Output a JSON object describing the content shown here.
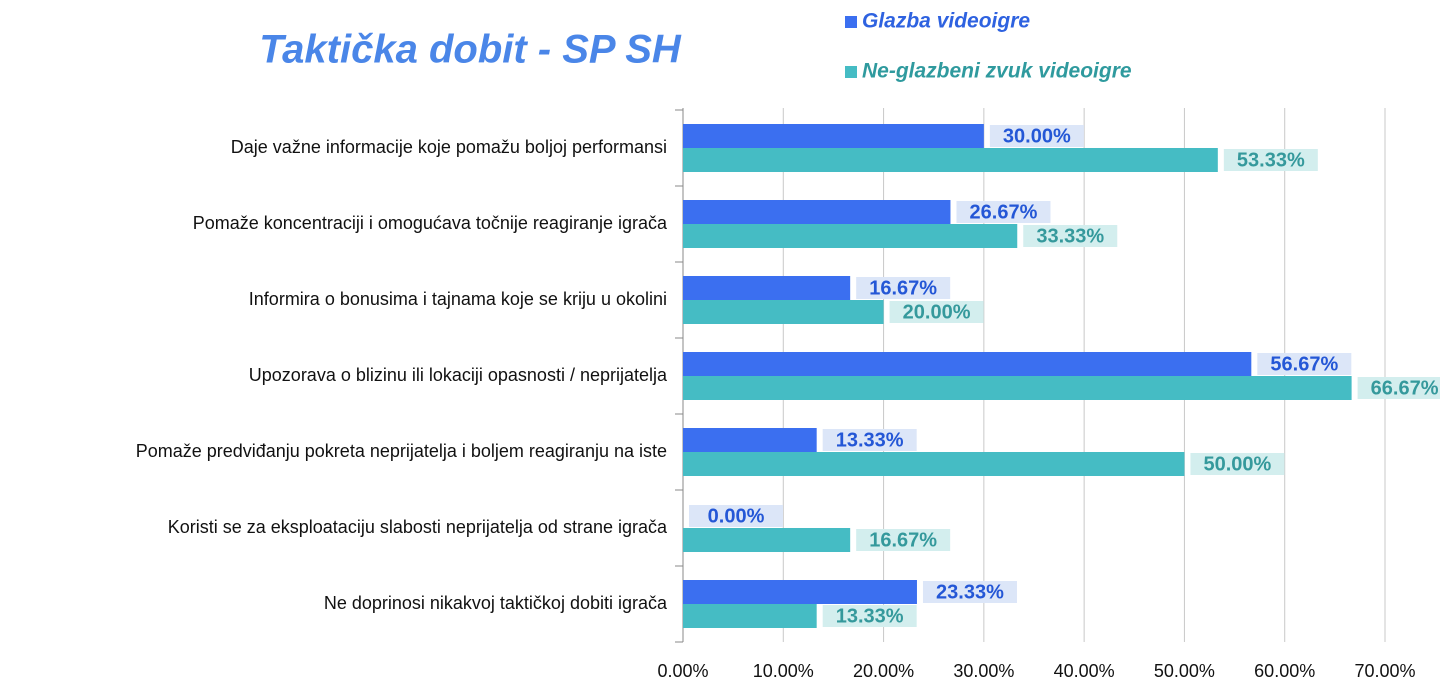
{
  "chart_data": {
    "type": "hbar",
    "title": "Taktička dobit - SP SH",
    "categories": [
      "Daje važne informacije koje pomažu boljoj performansi",
      "Pomaže koncentraciji i omogućava točnije reagiranje igrača",
      "Informira o bonusima i tajnama koje se kriju u okolini",
      "Upozorava o blizinu ili lokaciji opasnosti / neprijatelja",
      "Pomaže predviđanju pokreta neprijatelja i boljem reagiranju na iste",
      "Koristi se za eksploataciju slabosti neprijatelja od strane igrača",
      "Ne doprinosi nikakvoj taktičkoj dobiti igrača"
    ],
    "series": [
      {
        "name": "Glazba videoigre",
        "color": "#3b6ff0",
        "values": [
          30,
          26.67,
          16.67,
          56.67,
          13.33,
          0,
          23.33
        ],
        "value_labels": [
          "30.00%",
          "26.67%",
          "16.67%",
          "56.67%",
          "13.33%",
          "0.00%",
          "23.33%"
        ]
      },
      {
        "name": "Ne-glazbeni zvuk videoigre",
        "color": "#45bcc4",
        "values": [
          53.33,
          33.33,
          20,
          66.67,
          50,
          16.67,
          13.33
        ],
        "value_labels": [
          "53.33%",
          "33.33%",
          "20.00%",
          "66.67%",
          "50.00%",
          "16.67%",
          "13.33%"
        ]
      }
    ],
    "xlim": [
      0,
      70
    ],
    "xticks": [
      {
        "value": 0,
        "label": "0.00%"
      },
      {
        "value": 10,
        "label": "10.00%"
      },
      {
        "value": 20,
        "label": "20.00%"
      },
      {
        "value": 30,
        "label": "30.00%"
      },
      {
        "value": 40,
        "label": "40.00%"
      },
      {
        "value": 50,
        "label": "50.00%"
      },
      {
        "value": 60,
        "label": "60.00%"
      },
      {
        "value": 70,
        "label": "70.00%"
      }
    ],
    "grid": true
  }
}
